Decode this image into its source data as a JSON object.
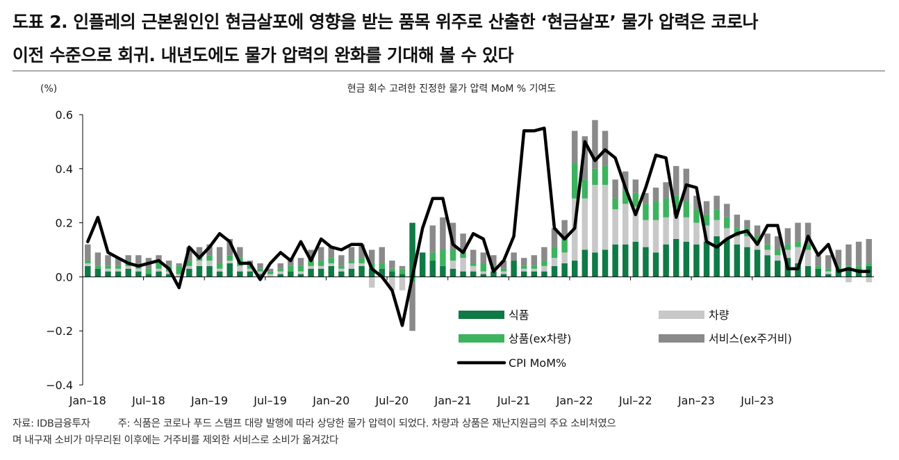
{
  "title": {
    "line1": "도표 2. 인플레의 근본원인인 현금살포에 영향을 받는 품목 위주로 산출한 ‘현금살포’ 물가 압력은 코로나",
    "line2": "이전 수준으로 회귀. 내년도에도 물가 압력의 완화를 기대해 볼 수 있다"
  },
  "footnote": {
    "source": "자료: IDB금융투자",
    "note": "주: 식품은 코로나 푸드 스탬프 대량 발행에 따라 상당한 물가 압력이 되었다. 차량과 상품은 재난지원금의 주요 소비처였으",
    "note_line2": "며 내구재 소비가 마무리된 이후에는 거주비를 제외한 서비스로 소비가 옮겨갔다"
  },
  "chart_data": {
    "type": "bar",
    "stacked": true,
    "title": "현금 회수 고려한 진정한 물가 압력 MoM % 기여도",
    "ylabel": "(%)",
    "ylim": [
      -0.4,
      0.6
    ],
    "yticks": [
      "0.6",
      "0.4",
      "0.2",
      "0.0",
      "-0.2",
      "-0.4"
    ],
    "xticks": [
      "Jan-18",
      "Jul-18",
      "Jan-19",
      "Jul-19",
      "Jan-20",
      "Jul-20",
      "Jan-21",
      "Jul-21",
      "Jan-22",
      "Jul-22",
      "Jan-23",
      "Jul-23"
    ],
    "x_start": "Jan-18",
    "grid": false,
    "legend_position": "lower-right",
    "colors": {
      "food": "#0f7a45",
      "vehicles": "#c8c8c8",
      "goods": "#3db35e",
      "services": "#8a8a8a",
      "cpi": "#000000"
    },
    "series": [
      {
        "name": "식품",
        "key": "food",
        "values": [
          0.04,
          0.03,
          0.02,
          0.02,
          0.03,
          0.02,
          0.01,
          0.02,
          0.01,
          0.0,
          0.03,
          0.04,
          0.04,
          0.02,
          0.05,
          0.02,
          0.02,
          0.01,
          0.0,
          0.01,
          0.02,
          0.01,
          0.03,
          0.03,
          0.04,
          0.02,
          0.03,
          0.04,
          0.03,
          0.03,
          0.02,
          0.01,
          0.2,
          0.09,
          0.06,
          0.04,
          0.03,
          0.02,
          0.02,
          0.01,
          0.02,
          0.01,
          0.06,
          0.02,
          0.02,
          0.02,
          0.04,
          0.05,
          0.06,
          0.1,
          0.09,
          0.1,
          0.12,
          0.12,
          0.13,
          0.11,
          0.09,
          0.12,
          0.14,
          0.13,
          0.12,
          0.13,
          0.15,
          0.14,
          0.12,
          0.11,
          0.1,
          0.08,
          0.06,
          0.07,
          0.05,
          0.04,
          0.03,
          0.01,
          0.03,
          0.03,
          0.03,
          0.04
        ]
      },
      {
        "name": "차량",
        "key": "vehicles",
        "values": [
          0.01,
          0.0,
          0.01,
          0.01,
          0.01,
          0.01,
          0.0,
          0.01,
          0.01,
          0.01,
          0.01,
          0.02,
          0.02,
          0.01,
          0.01,
          0.02,
          0.01,
          0.01,
          0.01,
          0.01,
          0.0,
          0.01,
          0.01,
          0.01,
          0.01,
          0.01,
          0.02,
          0.01,
          -0.04,
          0.0,
          -0.05,
          -0.05,
          0.0,
          0.0,
          0.0,
          0.0,
          0.03,
          0.05,
          0.02,
          0.01,
          0.01,
          0.01,
          0.0,
          0.01,
          0.01,
          0.02,
          0.03,
          0.04,
          0.23,
          0.19,
          0.25,
          0.24,
          0.13,
          0.15,
          0.13,
          0.1,
          0.12,
          0.1,
          0.09,
          0.09,
          0.08,
          0.06,
          0.06,
          0.04,
          0.03,
          0.04,
          0.03,
          0.02,
          0.02,
          0.03,
          0.06,
          0.06,
          0.0,
          0.01,
          0.0,
          -0.02,
          0.0,
          -0.02
        ]
      },
      {
        "name": "상품(ex차량)",
        "key": "goods",
        "values": [
          0.01,
          0.01,
          0.01,
          0.01,
          0.02,
          0.01,
          0.02,
          0.03,
          0.02,
          0.03,
          0.02,
          0.01,
          0.02,
          0.02,
          0.02,
          0.03,
          0.01,
          0.01,
          0.01,
          0.01,
          0.02,
          0.02,
          0.02,
          0.02,
          0.02,
          0.01,
          0.01,
          0.02,
          0.02,
          0.02,
          0.01,
          0.02,
          -0.02,
          0.0,
          0.03,
          0.06,
          0.04,
          0.02,
          0.01,
          0.03,
          0.01,
          0.01,
          0.0,
          0.01,
          0.01,
          0.02,
          0.04,
          0.06,
          0.13,
          0.07,
          0.06,
          0.07,
          0.04,
          0.05,
          0.05,
          0.06,
          0.07,
          0.07,
          0.07,
          0.06,
          0.05,
          0.04,
          0.04,
          0.04,
          0.03,
          0.03,
          0.02,
          0.02,
          0.02,
          0.02,
          0.02,
          0.02,
          0.01,
          0.01,
          0.01,
          0.01,
          0.01,
          0.01
        ]
      },
      {
        "name": "서비스(ex주거비)",
        "key": "services",
        "values": [
          0.06,
          0.05,
          0.04,
          0.03,
          0.02,
          0.04,
          0.04,
          0.02,
          0.02,
          0.01,
          0.05,
          0.04,
          0.04,
          0.06,
          0.06,
          0.04,
          0.02,
          0.02,
          0.01,
          0.02,
          0.03,
          0.03,
          0.04,
          0.05,
          0.04,
          0.04,
          0.05,
          0.05,
          0.05,
          0.06,
          0.03,
          0.01,
          -0.18,
          0.0,
          0.1,
          0.12,
          0.1,
          0.07,
          0.05,
          0.04,
          0.04,
          0.03,
          0.03,
          0.03,
          0.04,
          0.05,
          0.07,
          0.06,
          0.12,
          0.16,
          0.18,
          0.13,
          0.07,
          0.07,
          0.05,
          0.04,
          0.05,
          0.06,
          0.11,
          0.12,
          0.05,
          0.05,
          0.05,
          0.05,
          0.05,
          0.03,
          0.04,
          0.04,
          0.05,
          0.06,
          0.07,
          0.08,
          0.04,
          0.05,
          0.06,
          0.08,
          0.09,
          0.09
        ]
      },
      {
        "name": "CPI MoM%",
        "key": "cpi",
        "type": "line",
        "values": [
          0.13,
          0.22,
          0.09,
          0.07,
          0.05,
          0.04,
          0.05,
          0.06,
          0.03,
          -0.04,
          0.11,
          0.07,
          0.11,
          0.16,
          0.13,
          0.05,
          0.05,
          -0.01,
          0.05,
          0.09,
          0.06,
          0.13,
          0.06,
          0.14,
          0.11,
          0.1,
          0.12,
          0.12,
          0.03,
          0.0,
          -0.05,
          -0.18,
          0.0,
          0.18,
          0.29,
          0.29,
          0.12,
          0.09,
          0.16,
          0.14,
          0.02,
          0.06,
          0.15,
          0.54,
          0.54,
          0.55,
          0.18,
          0.14,
          0.18,
          0.5,
          0.43,
          0.47,
          0.44,
          0.33,
          0.23,
          0.33,
          0.45,
          0.44,
          0.22,
          0.34,
          0.33,
          0.13,
          0.11,
          0.14,
          0.16,
          0.17,
          0.12,
          0.19,
          0.19,
          0.03,
          0.03,
          0.15,
          0.08,
          0.12,
          0.02,
          0.03,
          0.02,
          0.02
        ]
      }
    ]
  }
}
